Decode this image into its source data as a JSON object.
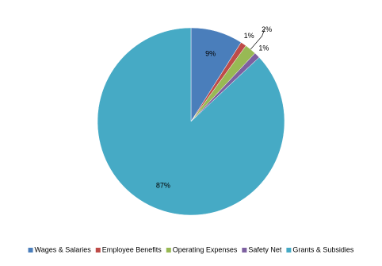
{
  "chart_data": {
    "type": "pie",
    "categories": [
      "Wages & Salaries",
      "Employee Benefits",
      "Operating Expenses",
      "Safety Net",
      "Grants & Subsidies"
    ],
    "values": [
      9,
      1,
      2,
      1,
      87
    ],
    "value_labels": [
      "9%",
      "1%",
      "2%",
      "1%",
      "87%"
    ],
    "colors": [
      "#4a7ebb",
      "#be4b48",
      "#98b954",
      "#7d60a0",
      "#46aac5"
    ],
    "legend": "bottom"
  }
}
